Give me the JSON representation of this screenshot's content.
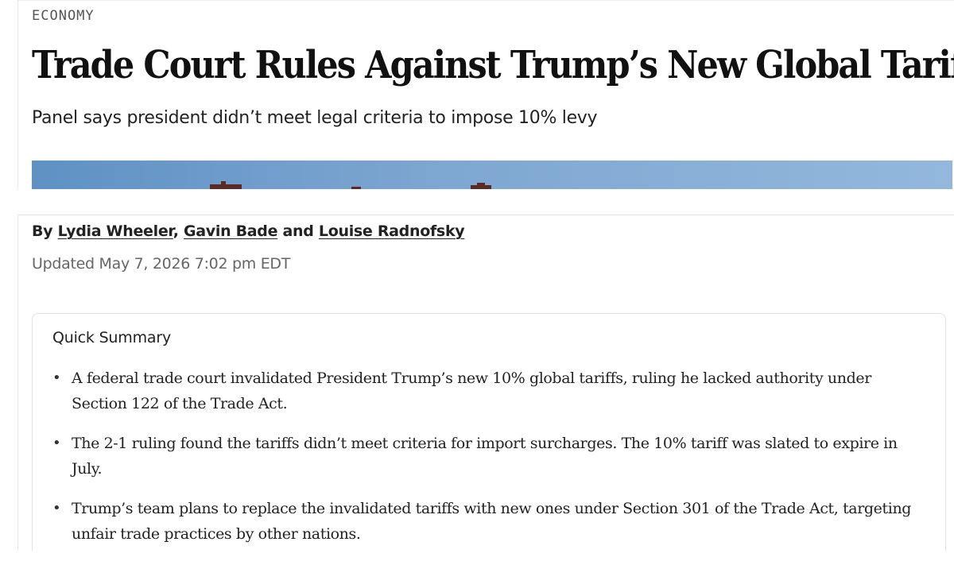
{
  "article": {
    "section": "ECONOMY",
    "headline": "Trade Court Rules Against Trump’s New Global Tariffs",
    "subhead": "Panel says president didn’t meet legal criteria to impose 10% levy",
    "byline": {
      "prefix": "By",
      "authors": [
        "Lydia Wheeler",
        "Gavin Bade",
        "Louise Radnofsky"
      ],
      "separator": ",",
      "conjunction": "and"
    },
    "updated": "Updated May 7, 2026 7:02 pm EDT"
  },
  "summary": {
    "title": "Quick Summary",
    "bullets": [
      "A federal trade court invalidated President Trump’s new 10% global tariffs, ruling he lacked authority under Section 122 of the Trade Act.",
      "The 2-1 ruling found the tariffs didn’t meet criteria for import surcharges. The 10% tariff was slated to expire in July.",
      "Trump’s team plans to replace the invalidated tariffs with new ones under Section 301 of the Trade Act, targeting unfair trade practices by other nations."
    ]
  },
  "colors": {
    "text": "#111111",
    "muted": "#666666",
    "sky": "#7ea7d1"
  }
}
